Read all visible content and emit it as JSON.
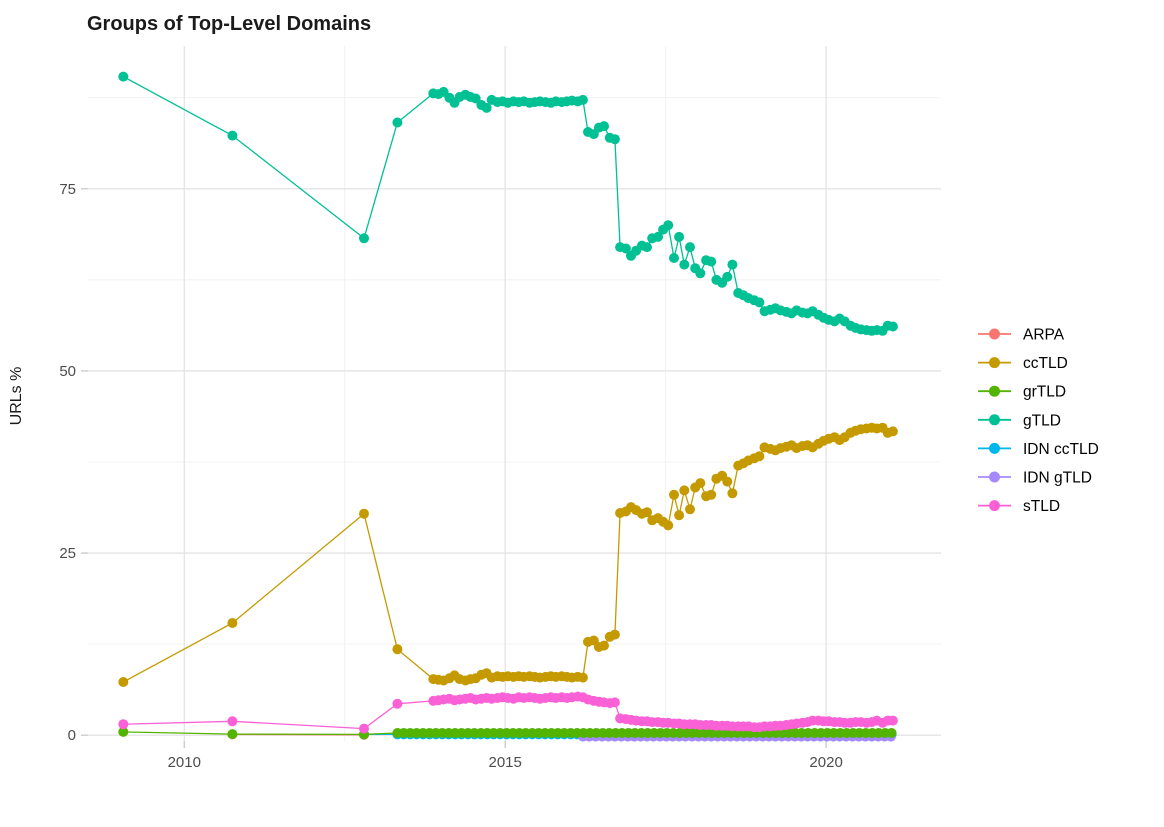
{
  "title": "Groups of Top-Level Domains",
  "chart_data": {
    "type": "line",
    "title": "Groups of Top-Level Domains",
    "xlabel": "",
    "ylabel": "URLs %",
    "xlim": [
      2008.5,
      2021.79
    ],
    "ylim": [
      -0.8,
      94.6
    ],
    "x_major_ticks": [
      2010,
      2015,
      2020
    ],
    "x_minor_gridlines": [
      2012.5,
      2017.5
    ],
    "y_major_ticks": [
      0,
      25,
      50,
      75
    ],
    "y_minor_gridlines": [
      12.5,
      37.5,
      62.5,
      87.5
    ],
    "grid": true,
    "legend_position": "right",
    "legend_title": "",
    "colors": {
      "major_grid": "#e4e4e4",
      "minor_grid": "#f0f0f0",
      "tick": "#c9c9c9",
      "tick_label": "#4d4d4d",
      "title_text": "#1b1b1b",
      "axis_title_text": "#1b1b1b"
    },
    "draw_order": [
      "ARPA",
      "IDN ccTLD",
      "IDN gTLD",
      "ccTLD",
      "grTLD",
      "gTLD",
      "sTLD"
    ],
    "series": [
      {
        "name": "ARPA",
        "color": "#F8766D",
        "points": [
          [
            2010.75,
            0.1
          ],
          [
            2012.8,
            0.05
          ]
        ]
      },
      {
        "name": "ccTLD",
        "color": "#C49A00",
        "points": [
          [
            2009.05,
            7.3
          ],
          [
            2010.75,
            15.4
          ],
          [
            2012.8,
            30.4
          ],
          [
            2013.32,
            11.8
          ],
          [
            2013.88,
            7.7
          ],
          [
            2013.96,
            7.6
          ],
          [
            2014.04,
            7.5
          ],
          [
            2014.13,
            7.8
          ],
          [
            2014.21,
            8.2
          ],
          [
            2014.29,
            7.7
          ],
          [
            2014.38,
            7.5
          ],
          [
            2014.46,
            7.7
          ],
          [
            2014.54,
            7.8
          ],
          [
            2014.63,
            8.3
          ],
          [
            2014.71,
            8.5
          ],
          [
            2014.79,
            7.9
          ],
          [
            2014.88,
            8.1
          ],
          [
            2014.96,
            8.0
          ],
          [
            2015.04,
            8.1
          ],
          [
            2015.13,
            8.0
          ],
          [
            2015.21,
            8.1
          ],
          [
            2015.29,
            8.0
          ],
          [
            2015.38,
            8.1
          ],
          [
            2015.46,
            8.0
          ],
          [
            2015.54,
            7.9
          ],
          [
            2015.63,
            8.0
          ],
          [
            2015.71,
            8.1
          ],
          [
            2015.79,
            8.0
          ],
          [
            2015.88,
            8.1
          ],
          [
            2015.96,
            8.0
          ],
          [
            2016.04,
            7.9
          ],
          [
            2016.13,
            8.0
          ],
          [
            2016.21,
            7.9
          ],
          [
            2016.29,
            12.8
          ],
          [
            2016.38,
            13.0
          ],
          [
            2016.46,
            12.1
          ],
          [
            2016.54,
            12.3
          ],
          [
            2016.63,
            13.5
          ],
          [
            2016.71,
            13.8
          ],
          [
            2016.79,
            30.5
          ],
          [
            2016.88,
            30.7
          ],
          [
            2016.96,
            31.3
          ],
          [
            2017.04,
            30.9
          ],
          [
            2017.13,
            30.4
          ],
          [
            2017.21,
            30.6
          ],
          [
            2017.29,
            29.5
          ],
          [
            2017.38,
            29.8
          ],
          [
            2017.46,
            29.3
          ],
          [
            2017.54,
            28.8
          ],
          [
            2017.63,
            33.0
          ],
          [
            2017.71,
            30.2
          ],
          [
            2017.79,
            33.6
          ],
          [
            2017.88,
            31.0
          ],
          [
            2017.96,
            34.0
          ],
          [
            2018.04,
            34.6
          ],
          [
            2018.13,
            32.8
          ],
          [
            2018.21,
            33.0
          ],
          [
            2018.29,
            35.2
          ],
          [
            2018.38,
            35.6
          ],
          [
            2018.46,
            34.8
          ],
          [
            2018.54,
            33.2
          ],
          [
            2018.63,
            37.0
          ],
          [
            2018.71,
            37.3
          ],
          [
            2018.79,
            37.7
          ],
          [
            2018.88,
            38.0
          ],
          [
            2018.96,
            38.3
          ],
          [
            2019.04,
            39.5
          ],
          [
            2019.13,
            39.3
          ],
          [
            2019.21,
            39.1
          ],
          [
            2019.29,
            39.4
          ],
          [
            2019.38,
            39.6
          ],
          [
            2019.46,
            39.8
          ],
          [
            2019.54,
            39.4
          ],
          [
            2019.63,
            39.7
          ],
          [
            2019.71,
            39.8
          ],
          [
            2019.79,
            39.5
          ],
          [
            2019.88,
            40.0
          ],
          [
            2019.96,
            40.4
          ],
          [
            2020.04,
            40.7
          ],
          [
            2020.13,
            40.9
          ],
          [
            2020.21,
            40.5
          ],
          [
            2020.29,
            40.9
          ],
          [
            2020.38,
            41.5
          ],
          [
            2020.46,
            41.8
          ],
          [
            2020.54,
            42.0
          ],
          [
            2020.63,
            42.1
          ],
          [
            2020.71,
            42.2
          ],
          [
            2020.79,
            42.1
          ],
          [
            2020.88,
            42.2
          ],
          [
            2020.96,
            41.5
          ],
          [
            2021.04,
            41.7
          ]
        ]
      },
      {
        "name": "grTLD",
        "color": "#53B400",
        "points": [
          [
            2009.05,
            0.45
          ],
          [
            2010.75,
            0.15
          ],
          [
            2012.8,
            0.1
          ]
        ],
        "points_constant": {
          "x0": 2013.32,
          "x1": 2021.04,
          "step": 0.1,
          "y": 0.3
        }
      },
      {
        "name": "gTLD",
        "color": "#00C094",
        "points": [
          [
            2009.05,
            90.4
          ],
          [
            2010.75,
            82.3
          ],
          [
            2012.8,
            68.2
          ],
          [
            2013.32,
            84.1
          ],
          [
            2013.88,
            88.1
          ],
          [
            2013.96,
            88.0
          ],
          [
            2014.04,
            88.3
          ],
          [
            2014.13,
            87.5
          ],
          [
            2014.21,
            86.8
          ],
          [
            2014.29,
            87.6
          ],
          [
            2014.38,
            87.9
          ],
          [
            2014.46,
            87.6
          ],
          [
            2014.54,
            87.4
          ],
          [
            2014.63,
            86.5
          ],
          [
            2014.71,
            86.1
          ],
          [
            2014.79,
            87.2
          ],
          [
            2014.88,
            86.9
          ],
          [
            2014.96,
            87.0
          ],
          [
            2015.04,
            86.8
          ],
          [
            2015.13,
            87.0
          ],
          [
            2015.21,
            86.9
          ],
          [
            2015.29,
            87.0
          ],
          [
            2015.38,
            86.8
          ],
          [
            2015.46,
            86.9
          ],
          [
            2015.54,
            87.0
          ],
          [
            2015.63,
            86.9
          ],
          [
            2015.71,
            86.8
          ],
          [
            2015.79,
            87.0
          ],
          [
            2015.88,
            86.9
          ],
          [
            2015.96,
            87.0
          ],
          [
            2016.04,
            87.1
          ],
          [
            2016.13,
            87.0
          ],
          [
            2016.21,
            87.2
          ],
          [
            2016.29,
            82.8
          ],
          [
            2016.38,
            82.5
          ],
          [
            2016.46,
            83.4
          ],
          [
            2016.54,
            83.6
          ],
          [
            2016.63,
            82.0
          ],
          [
            2016.71,
            81.8
          ],
          [
            2016.79,
            67.0
          ],
          [
            2016.88,
            66.8
          ],
          [
            2016.96,
            65.8
          ],
          [
            2017.04,
            66.5
          ],
          [
            2017.13,
            67.2
          ],
          [
            2017.21,
            67.0
          ],
          [
            2017.29,
            68.2
          ],
          [
            2017.38,
            68.4
          ],
          [
            2017.46,
            69.4
          ],
          [
            2017.54,
            70.0
          ],
          [
            2017.63,
            65.5
          ],
          [
            2017.71,
            68.4
          ],
          [
            2017.79,
            64.6
          ],
          [
            2017.88,
            67.0
          ],
          [
            2017.96,
            64.1
          ],
          [
            2018.04,
            63.4
          ],
          [
            2018.13,
            65.2
          ],
          [
            2018.21,
            65.0
          ],
          [
            2018.29,
            62.5
          ],
          [
            2018.38,
            62.1
          ],
          [
            2018.46,
            62.9
          ],
          [
            2018.54,
            64.6
          ],
          [
            2018.63,
            60.7
          ],
          [
            2018.71,
            60.4
          ],
          [
            2018.79,
            60.0
          ],
          [
            2018.88,
            59.7
          ],
          [
            2018.96,
            59.4
          ],
          [
            2019.04,
            58.2
          ],
          [
            2019.13,
            58.4
          ],
          [
            2019.21,
            58.6
          ],
          [
            2019.29,
            58.3
          ],
          [
            2019.38,
            58.1
          ],
          [
            2019.46,
            57.9
          ],
          [
            2019.54,
            58.3
          ],
          [
            2019.63,
            58.0
          ],
          [
            2019.71,
            57.9
          ],
          [
            2019.79,
            58.2
          ],
          [
            2019.88,
            57.7
          ],
          [
            2019.96,
            57.3
          ],
          [
            2020.04,
            57.0
          ],
          [
            2020.13,
            56.8
          ],
          [
            2020.21,
            57.2
          ],
          [
            2020.29,
            56.8
          ],
          [
            2020.38,
            56.2
          ],
          [
            2020.46,
            55.9
          ],
          [
            2020.54,
            55.7
          ],
          [
            2020.63,
            55.6
          ],
          [
            2020.71,
            55.5
          ],
          [
            2020.79,
            55.6
          ],
          [
            2020.88,
            55.5
          ],
          [
            2020.96,
            56.2
          ],
          [
            2021.04,
            56.1
          ]
        ]
      },
      {
        "name": "IDN ccTLD",
        "color": "#00B6EB",
        "points": [
          [
            2012.8,
            0.1
          ]
        ],
        "points_constant": {
          "x0": 2013.32,
          "x1": 2021.04,
          "step": 0.1,
          "y": 0.1
        }
      },
      {
        "name": "IDN gTLD",
        "color": "#A58AFF",
        "points": [],
        "points_constant": {
          "x0": 2016.21,
          "x1": 2021.04,
          "step": 0.1,
          "y": -0.2
        }
      },
      {
        "name": "sTLD",
        "color": "#FB61D7",
        "points": [
          [
            2009.05,
            1.5
          ],
          [
            2010.75,
            1.9
          ],
          [
            2012.8,
            0.9
          ],
          [
            2013.32,
            4.3
          ],
          [
            2013.88,
            4.7
          ],
          [
            2013.96,
            4.8
          ],
          [
            2014.04,
            4.9
          ],
          [
            2014.13,
            5.0
          ],
          [
            2014.21,
            4.8
          ],
          [
            2014.29,
            4.9
          ],
          [
            2014.38,
            5.0
          ],
          [
            2014.46,
            5.1
          ],
          [
            2014.54,
            4.9
          ],
          [
            2014.63,
            5.0
          ],
          [
            2014.71,
            5.1
          ],
          [
            2014.79,
            5.0
          ],
          [
            2014.88,
            5.1
          ],
          [
            2014.96,
            5.2
          ],
          [
            2015.04,
            5.1
          ],
          [
            2015.13,
            5.0
          ],
          [
            2015.21,
            5.2
          ],
          [
            2015.29,
            5.1
          ],
          [
            2015.38,
            5.2
          ],
          [
            2015.46,
            5.1
          ],
          [
            2015.54,
            5.0
          ],
          [
            2015.63,
            5.1
          ],
          [
            2015.71,
            5.2
          ],
          [
            2015.79,
            5.1
          ],
          [
            2015.88,
            5.2
          ],
          [
            2015.96,
            5.1
          ],
          [
            2016.04,
            5.2
          ],
          [
            2016.13,
            5.3
          ],
          [
            2016.21,
            5.2
          ],
          [
            2016.29,
            4.9
          ],
          [
            2016.38,
            4.7
          ],
          [
            2016.46,
            4.6
          ],
          [
            2016.54,
            4.5
          ],
          [
            2016.63,
            4.4
          ],
          [
            2016.71,
            4.5
          ],
          [
            2016.79,
            2.3
          ],
          [
            2016.88,
            2.2
          ],
          [
            2016.96,
            2.1
          ],
          [
            2017.04,
            2.0
          ],
          [
            2017.13,
            1.9
          ],
          [
            2017.21,
            1.9
          ],
          [
            2017.29,
            1.8
          ],
          [
            2017.38,
            1.8
          ],
          [
            2017.46,
            1.7
          ],
          [
            2017.54,
            1.7
          ],
          [
            2017.63,
            1.6
          ],
          [
            2017.71,
            1.6
          ],
          [
            2017.79,
            1.5
          ],
          [
            2017.88,
            1.5
          ],
          [
            2017.96,
            1.5
          ],
          [
            2018.04,
            1.4
          ],
          [
            2018.13,
            1.4
          ],
          [
            2018.21,
            1.4
          ],
          [
            2018.29,
            1.3
          ],
          [
            2018.38,
            1.3
          ],
          [
            2018.46,
            1.3
          ],
          [
            2018.54,
            1.2
          ],
          [
            2018.63,
            1.2
          ],
          [
            2018.71,
            1.2
          ],
          [
            2018.79,
            1.2
          ],
          [
            2018.88,
            1.1
          ],
          [
            2018.96,
            1.1
          ],
          [
            2019.04,
            1.2
          ],
          [
            2019.13,
            1.2
          ],
          [
            2019.21,
            1.3
          ],
          [
            2019.29,
            1.3
          ],
          [
            2019.38,
            1.4
          ],
          [
            2019.46,
            1.5
          ],
          [
            2019.54,
            1.6
          ],
          [
            2019.63,
            1.7
          ],
          [
            2019.71,
            1.8
          ],
          [
            2019.79,
            2.0
          ],
          [
            2019.88,
            2.0
          ],
          [
            2019.96,
            1.9
          ],
          [
            2020.04,
            1.9
          ],
          [
            2020.13,
            1.8
          ],
          [
            2020.21,
            1.8
          ],
          [
            2020.29,
            1.7
          ],
          [
            2020.38,
            1.7
          ],
          [
            2020.46,
            1.8
          ],
          [
            2020.54,
            1.8
          ],
          [
            2020.63,
            1.7
          ],
          [
            2020.71,
            1.8
          ],
          [
            2020.79,
            2.0
          ],
          [
            2020.88,
            1.7
          ],
          [
            2020.96,
            2.0
          ],
          [
            2021.04,
            2.0
          ]
        ]
      }
    ]
  }
}
